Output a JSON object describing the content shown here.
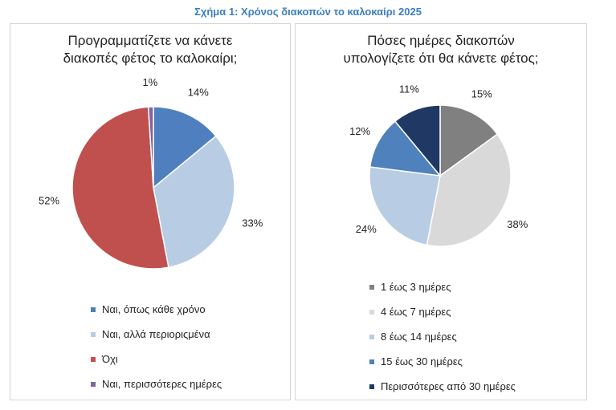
{
  "figure_title": "Σχήμα 1: Χρόνος διακοπών το καλοκαίρι 2025",
  "colors": {
    "title": "#3a7dbf",
    "left": [
      "#4f7fbf",
      "#b8cce4",
      "#c0504d",
      "#8064a2"
    ],
    "right": [
      "#808080",
      "#d9d9d9",
      "#b8cce4",
      "#4f81bd",
      "#1f3864"
    ]
  },
  "chart_data": [
    {
      "type": "pie",
      "title_lines": [
        "Προγραμματίζετε να κάνετε",
        "διακοπές φέτος το καλοκαίρι;"
      ],
      "categories": [
        "Ναι, όπως κάθε χρόνο",
        "Ναι, αλλά περιοριςμένα",
        "Όχι",
        "Ναι, περισσότερες ημέρες"
      ],
      "values": [
        14,
        33,
        52,
        1
      ],
      "data_labels": [
        "14%",
        "33%",
        "52%",
        "1%"
      ],
      "legend_position": "bottom"
    },
    {
      "type": "pie",
      "title_lines": [
        "Πόσες ημέρες διακοπών",
        "υπολογίζετε ότι θα κάνετε φέτος;"
      ],
      "categories": [
        "1 έως 3 ημέρες",
        "4 έως 7 ημέρες",
        "8 έως 14 ημέρες",
        "15 έως 30 ημέρες",
        "Περισσότερες από 30 ημέρες"
      ],
      "values": [
        15,
        38,
        24,
        12,
        11
      ],
      "data_labels": [
        "15%",
        "38%",
        "24%",
        "12%",
        "11%"
      ],
      "legend_position": "bottom"
    }
  ]
}
